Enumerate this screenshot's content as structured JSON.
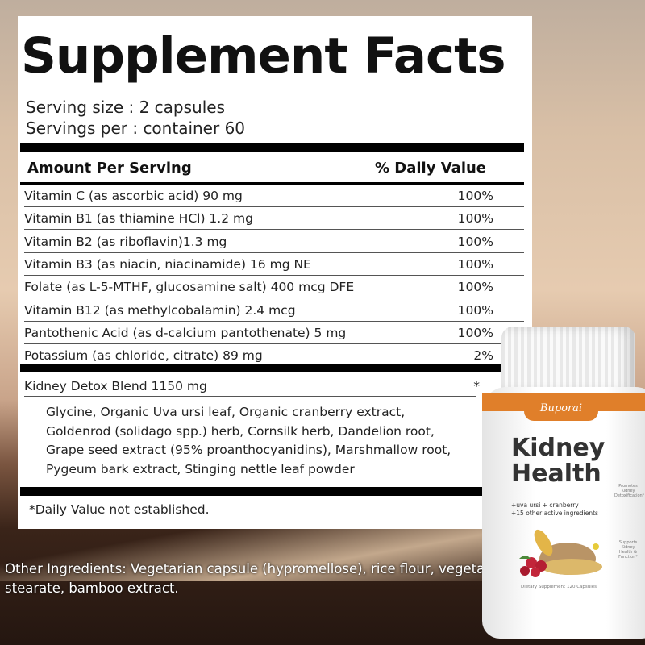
{
  "title": "Supplement Facts",
  "serving_size": "Serving size : 2 capsules",
  "servings_per": "Servings per : container 60",
  "header": {
    "amount": "Amount Per Serving",
    "dv": "% Daily Value"
  },
  "rows": [
    {
      "name": "Vitamin C (as ascorbic acid) 90 mg",
      "dv": "100%"
    },
    {
      "name": "Vitamin B1 (as thiamine HCl) 1.2 mg",
      "dv": "100%"
    },
    {
      "name": "Vitamin B2 (as riboflavin)1.3 mg",
      "dv": "100%"
    },
    {
      "name": "Vitamin B3 (as niacin, niacinamide) 16 mg NE",
      "dv": "100%"
    },
    {
      "name": "Folate (as L-5-MTHF, glucosamine salt) 400 mcg DFE",
      "dv": "100%"
    },
    {
      "name": "Vitamin B12 (as methylcobalamin) 2.4 mcg",
      "dv": "100%"
    },
    {
      "name": "Pantothenic Acid (as d-calcium pantothenate) 5 mg",
      "dv": "100%"
    },
    {
      "name": "Potassium (as chloride, citrate) 89 mg",
      "dv": "2%"
    }
  ],
  "blend": {
    "name": "Kidney Detox Blend 1150 mg",
    "dv": "*",
    "ingredients": "Glycine, Organic Uva ursi leaf, Organic cranberry extract, Goldenrod (solidago spp.) herb, Cornsilk herb, Dandelion root, Grape seed extract (95% proanthocyanidins), Marshmallow root, Pygeum bark extract, Stinging nettle leaf powder"
  },
  "footnote": "*Daily Value not established.",
  "other_ingredients": "Other Ingredients: Vegetarian capsule (hypromellose), rice flour, vegetable magnesium stearate, bamboo extract.",
  "bottle": {
    "brand": "Buporai",
    "name_line1": "Kidney",
    "name_line2": "Health",
    "sub1": "+uva ursi + cranberry",
    "sub2": "+15 other active ingredients",
    "claim1": "Promotes Kidney Detoxification*",
    "claim2": "Supports Kidney Health & Function*",
    "footer": "Dietary Supplement  120 Capsules",
    "accent": "#e07f2a"
  }
}
